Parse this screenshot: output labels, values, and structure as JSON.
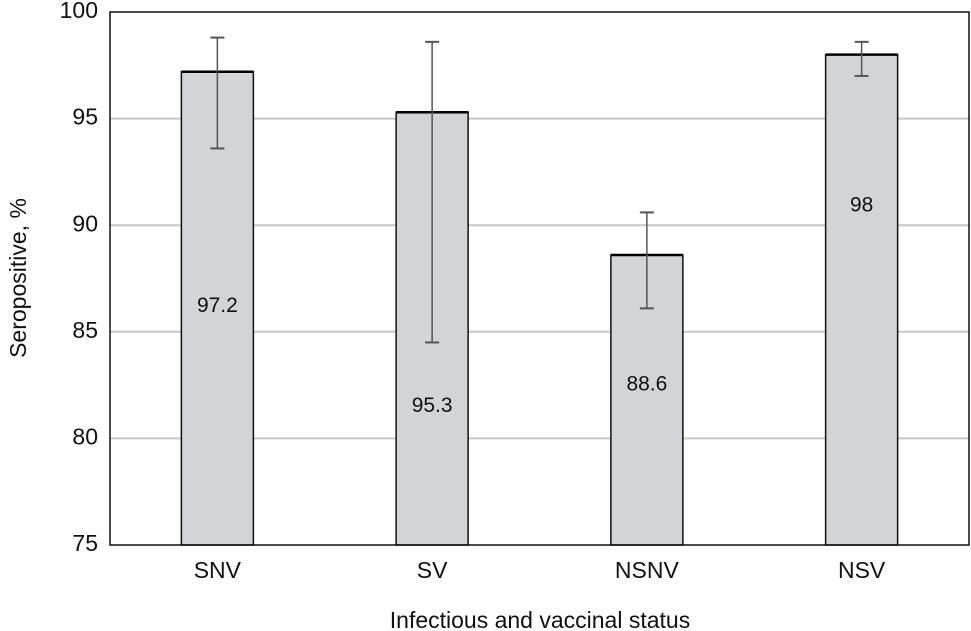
{
  "chart_data": {
    "type": "bar",
    "title": "",
    "xlabel": "Infectious and vaccinal status",
    "ylabel": "Seropositive, %",
    "categories": [
      "SNV",
      "SV",
      "NSNV",
      "NSV"
    ],
    "values": [
      97.2,
      95.3,
      88.6,
      98
    ],
    "value_labels": [
      "97.2",
      "95.3",
      "88.6",
      "98"
    ],
    "error_low": [
      93.6,
      84.5,
      86.1,
      97.0
    ],
    "error_high": [
      98.8,
      98.6,
      90.6,
      98.6
    ],
    "ylim": [
      75,
      100
    ],
    "yticks": [
      75,
      80,
      85,
      90,
      95,
      100
    ],
    "grid": true,
    "colors": {
      "bar": "#d3d4d6",
      "bar_stroke": "#111111",
      "grid": "#c8c8c8",
      "error": "#555555"
    }
  }
}
